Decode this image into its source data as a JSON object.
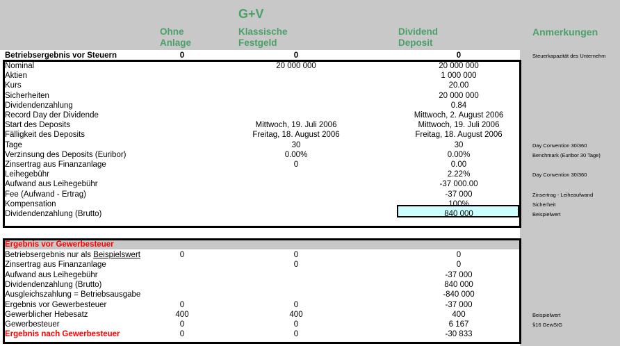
{
  "header": {
    "group_title": "G+V",
    "col1": [
      "Ohne",
      "Anlage"
    ],
    "col2": [
      "Klassische",
      "Festgeld"
    ],
    "col3": [
      "Dividend",
      "Deposit"
    ],
    "col4": "Anmerkungen"
  },
  "top_row": {
    "label": "Betriebsergebnis vor Steuern",
    "v1": "0",
    "v2": "0",
    "v3": "0",
    "note": "Steuerkapazität des Unternehm"
  },
  "section1": [
    {
      "label": "Nominal",
      "v1": "",
      "v2": "20 000 000",
      "v3": "20 000 000",
      "note": ""
    },
    {
      "label": "Aktien",
      "v1": "",
      "v2": "",
      "v3": "1 000 000",
      "note": ""
    },
    {
      "label": "Kurs",
      "v1": "",
      "v2": "",
      "v3": "20.00",
      "note": ""
    },
    {
      "label": "Sicherheiten",
      "v1": "",
      "v2": "",
      "v3": "20 000 000",
      "note": ""
    },
    {
      "label": "Dividendenzahlung",
      "v1": "",
      "v2": "",
      "v3": "0.84",
      "note": ""
    },
    {
      "label": "Record Day der Dividende",
      "v1": "",
      "v2": "",
      "v3": "Mittwoch, 2. August 2006",
      "note": ""
    },
    {
      "label": "Start des Deposits",
      "v1": "",
      "v2": "Mittwoch, 19. Juli 2006",
      "v3": "Mittwoch, 19. Juli 2006",
      "note": ""
    },
    {
      "label": "Fälligkeit des Deposits",
      "v1": "",
      "v2": "Freitag, 18. August 2006",
      "v3": "Freitag, 18. August 2006",
      "note": ""
    },
    {
      "label": "Tage",
      "v1": "",
      "v2": "30",
      "v3": "30",
      "note": "Day Convention 30/360"
    },
    {
      "label": "Verzinsung des Deposits (Euribor)",
      "v1": "",
      "v2": "0.00%",
      "v3": "0.00%",
      "note": "Benchmark (Euribor 30 Tage)"
    },
    {
      "label": "Zinsertrag aus Finanzanlage",
      "v1": "",
      "v2": "0",
      "v3": "0.00",
      "note": ""
    },
    {
      "label": "Leihegebühr",
      "v1": "",
      "v2": "",
      "v3": "2.22%",
      "note": "Day Convention 30/360"
    },
    {
      "label": "Aufwand aus Leihegebühr",
      "v1": "",
      "v2": "",
      "v3": "-37 000.00",
      "note": ""
    },
    {
      "label": "Fee (Aufwand - Ertrag)",
      "v1": "",
      "v2": "",
      "v3": "-37 000",
      "note": "Zinsertrag - Leiheaufwand"
    },
    {
      "label": "Kompensation",
      "v1": "",
      "v2": "",
      "v3": "100%",
      "note": "Sicherheit"
    },
    {
      "label": "Dividendenzahlung (Brutto)",
      "v1": "",
      "v2": "",
      "v3": "840 000",
      "note": "Beispielwert"
    }
  ],
  "section2_title": "Ergebnis vor Gewerbesteuer",
  "section2": [
    {
      "label_a": "Betriebsergebnis nur als ",
      "label_b": "Beispielswert",
      "v1": "0",
      "v2": "0",
      "v3": "0",
      "note": ""
    },
    {
      "label_a": "Zinsertrag aus Finanzanlage",
      "label_b": "",
      "v1": "",
      "v2": "0",
      "v3": "0",
      "note": ""
    },
    {
      "label_a": "Aufwand aus Leihegebühr",
      "label_b": "",
      "v1": "",
      "v2": "",
      "v3": "-37 000",
      "note": ""
    },
    {
      "label_a": "Dividendenzahlung (Brutto)",
      "label_b": "",
      "v1": "",
      "v2": "",
      "v3": "840 000",
      "note": ""
    },
    {
      "label_a": "Ausgleichszahlung = Betriebsausgabe",
      "label_b": "",
      "v1": "",
      "v2": "",
      "v3": "-840 000",
      "note": ""
    },
    {
      "label_a": "Ergebnis vor Gewerbesteuer",
      "label_b": "",
      "v1": "0",
      "v2": "0",
      "v3": "-37 000",
      "note": ""
    },
    {
      "label_a": "Gewerblicher Hebesatz",
      "label_b": "",
      "v1": "400",
      "v2": "400",
      "v3": "400",
      "note": "Beispielwert"
    },
    {
      "label_a": "Gewerbesteuer",
      "label_b": "",
      "v1": "0",
      "v2": "0",
      "v3": "6 167",
      "note": "§16 GewStG"
    },
    {
      "label_a": "Ergebnis nach Gewerbesteuer",
      "label_b": "",
      "v1": "0",
      "v2": "0",
      "v3": "-30 833",
      "note": ""
    }
  ]
}
